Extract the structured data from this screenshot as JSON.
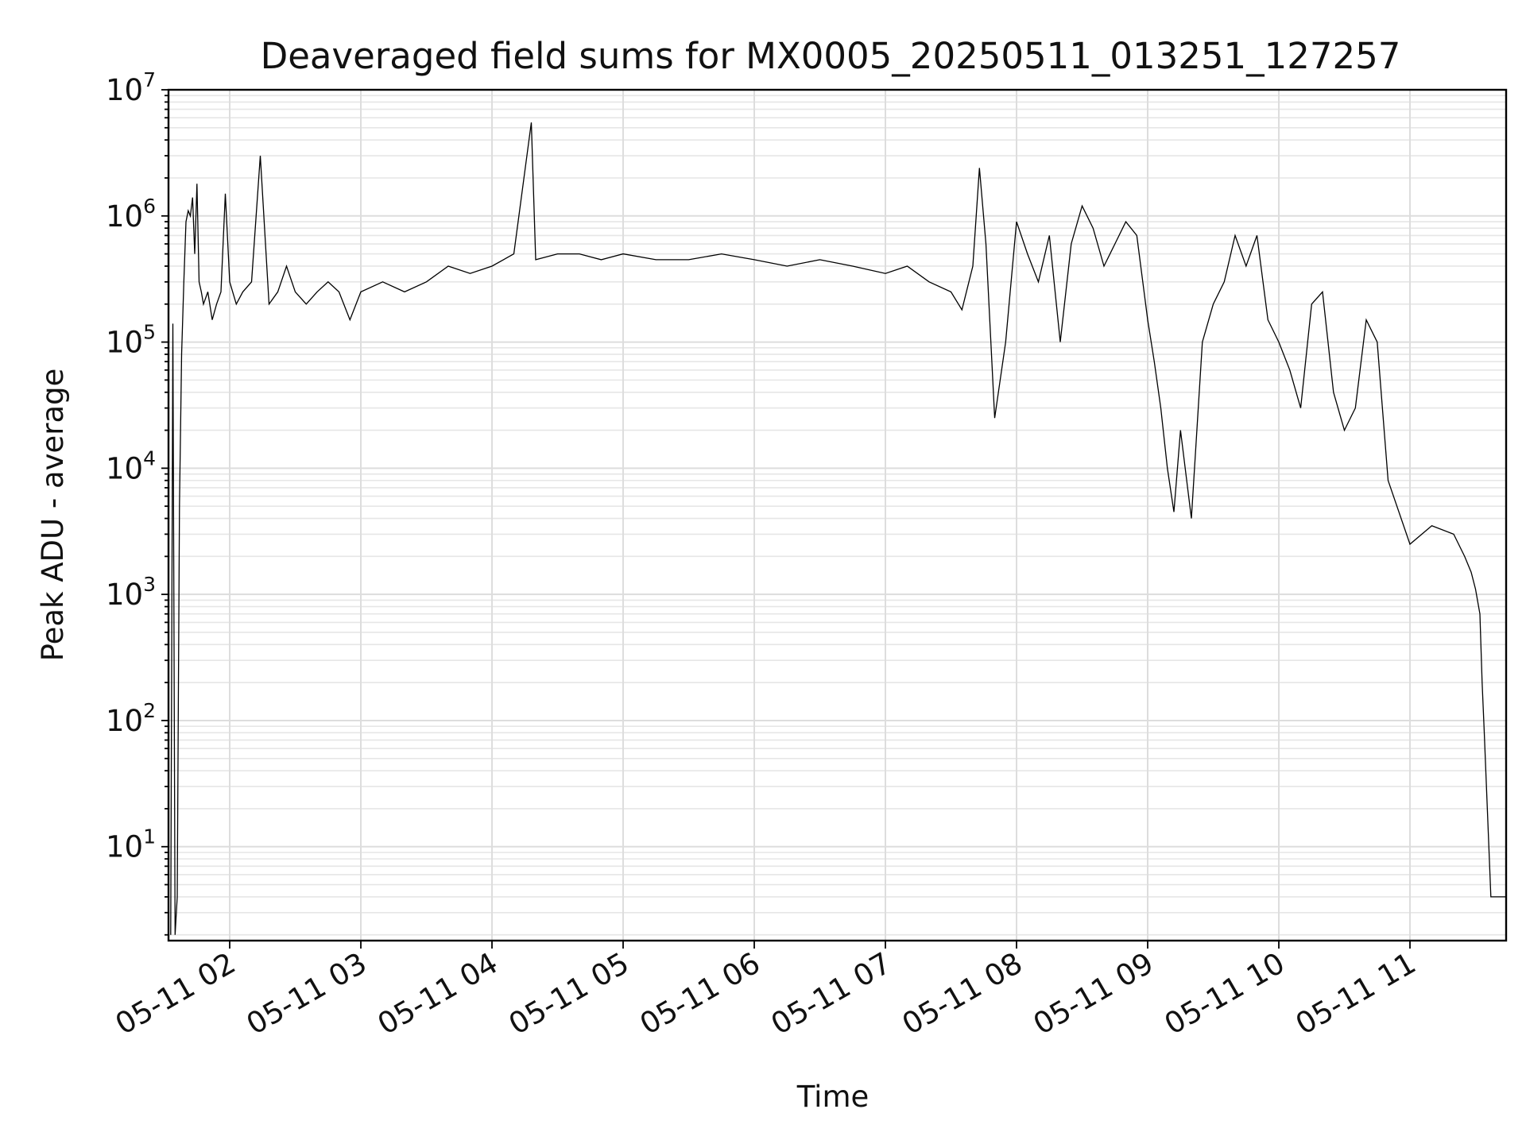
{
  "chart_data": {
    "type": "line",
    "title": "Deaveraged field sums for MX0005_20250511_013251_127257",
    "xlabel": "Time",
    "ylabel": "Peak ADU - average",
    "yscale": "log",
    "ylim": [
      1.8,
      10000000
    ],
    "xlim": [
      "2025-05-11 01:32",
      "2025-05-11 11:44"
    ],
    "x_ticks": [
      "05-11 02",
      "05-11 03",
      "05-11 04",
      "05-11 05",
      "05-11 06",
      "05-11 07",
      "05-11 08",
      "05-11 09",
      "05-11 10",
      "05-11 11"
    ],
    "y_ticks": [
      {
        "base": "10",
        "exp": "1"
      },
      {
        "base": "10",
        "exp": "2"
      },
      {
        "base": "10",
        "exp": "3"
      },
      {
        "base": "10",
        "exp": "4"
      },
      {
        "base": "10",
        "exp": "5"
      },
      {
        "base": "10",
        "exp": "6"
      },
      {
        "base": "10",
        "exp": "7"
      }
    ],
    "grid": true,
    "legend": "none",
    "color": "#000000",
    "series": [
      {
        "x": [
          "2025-05-11 01:33",
          "2025-05-11 01:34",
          "2025-05-11 01:35",
          "2025-05-11 01:36",
          "2025-05-11 01:37",
          "2025-05-11 01:38",
          "2025-05-11 01:39",
          "2025-05-11 01:40",
          "2025-05-11 01:41",
          "2025-05-11 01:42",
          "2025-05-11 01:43",
          "2025-05-11 01:44",
          "2025-05-11 01:45",
          "2025-05-11 01:46",
          "2025-05-11 01:47",
          "2025-05-11 01:48",
          "2025-05-11 01:50",
          "2025-05-11 01:52",
          "2025-05-11 01:54",
          "2025-05-11 01:56",
          "2025-05-11 01:58",
          "2025-05-11 02:00",
          "2025-05-11 02:03",
          "2025-05-11 02:06",
          "2025-05-11 02:10",
          "2025-05-11 02:14",
          "2025-05-11 02:18",
          "2025-05-11 02:22",
          "2025-05-11 02:26",
          "2025-05-11 02:30",
          "2025-05-11 02:35",
          "2025-05-11 02:40",
          "2025-05-11 02:45",
          "2025-05-11 02:50",
          "2025-05-11 02:55",
          "2025-05-11 03:00",
          "2025-05-11 03:10",
          "2025-05-11 03:20",
          "2025-05-11 03:30",
          "2025-05-11 03:40",
          "2025-05-11 03:50",
          "2025-05-11 04:00",
          "2025-05-11 04:10",
          "2025-05-11 04:18",
          "2025-05-11 04:20",
          "2025-05-11 04:30",
          "2025-05-11 04:40",
          "2025-05-11 04:50",
          "2025-05-11 05:00",
          "2025-05-11 05:15",
          "2025-05-11 05:30",
          "2025-05-11 05:45",
          "2025-05-11 06:00",
          "2025-05-11 06:15",
          "2025-05-11 06:30",
          "2025-05-11 06:45",
          "2025-05-11 07:00",
          "2025-05-11 07:10",
          "2025-05-11 07:20",
          "2025-05-11 07:30",
          "2025-05-11 07:35",
          "2025-05-11 07:40",
          "2025-05-11 07:43",
          "2025-05-11 07:46",
          "2025-05-11 07:50",
          "2025-05-11 07:55",
          "2025-05-11 08:00",
          "2025-05-11 08:05",
          "2025-05-11 08:10",
          "2025-05-11 08:15",
          "2025-05-11 08:20",
          "2025-05-11 08:25",
          "2025-05-11 08:30",
          "2025-05-11 08:35",
          "2025-05-11 08:40",
          "2025-05-11 08:45",
          "2025-05-11 08:50",
          "2025-05-11 08:55",
          "2025-05-11 09:00",
          "2025-05-11 09:03",
          "2025-05-11 09:06",
          "2025-05-11 09:09",
          "2025-05-11 09:12",
          "2025-05-11 09:15",
          "2025-05-11 09:20",
          "2025-05-11 09:25",
          "2025-05-11 09:30",
          "2025-05-11 09:35",
          "2025-05-11 09:40",
          "2025-05-11 09:45",
          "2025-05-11 09:50",
          "2025-05-11 09:55",
          "2025-05-11 10:00",
          "2025-05-11 10:05",
          "2025-05-11 10:10",
          "2025-05-11 10:15",
          "2025-05-11 10:20",
          "2025-05-11 10:25",
          "2025-05-11 10:30",
          "2025-05-11 10:35",
          "2025-05-11 10:40",
          "2025-05-11 10:45",
          "2025-05-11 10:50",
          "2025-05-11 11:00",
          "2025-05-11 11:10",
          "2025-05-11 11:20",
          "2025-05-11 11:25",
          "2025-05-11 11:28",
          "2025-05-11 11:30",
          "2025-05-11 11:32",
          "2025-05-11 11:33",
          "2025-05-11 11:34",
          "2025-05-11 11:37",
          "2025-05-11 11:40",
          "2025-05-11 11:44"
        ],
        "y": [
          2,
          140000,
          2,
          4,
          5000,
          80000,
          300000,
          900000,
          1100000,
          1000000,
          1400000,
          500000,
          1800000,
          300000,
          250000,
          200000,
          250000,
          150000,
          200000,
          250000,
          1500000,
          300000,
          200000,
          250000,
          300000,
          3000000,
          200000,
          250000,
          400000,
          250000,
          200000,
          250000,
          300000,
          250000,
          150000,
          250000,
          300000,
          250000,
          300000,
          400000,
          350000,
          400000,
          500000,
          5500000,
          450000,
          500000,
          500000,
          450000,
          500000,
          450000,
          450000,
          500000,
          450000,
          400000,
          450000,
          400000,
          350000,
          400000,
          300000,
          250000,
          180000,
          400000,
          2400000,
          600000,
          25000,
          100000,
          900000,
          500000,
          300000,
          700000,
          100000,
          600000,
          1200000,
          800000,
          400000,
          600000,
          900000,
          700000,
          150000,
          70000,
          30000,
          10000,
          4500,
          20000,
          4000,
          100000,
          200000,
          300000,
          700000,
          400000,
          700000,
          150000,
          100000,
          60000,
          30000,
          200000,
          250000,
          40000,
          20000,
          30000,
          150000,
          100000,
          8000,
          2500,
          3500,
          3000,
          2000,
          1500,
          1100,
          700,
          200,
          80,
          4,
          4,
          4
        ]
      }
    ]
  }
}
